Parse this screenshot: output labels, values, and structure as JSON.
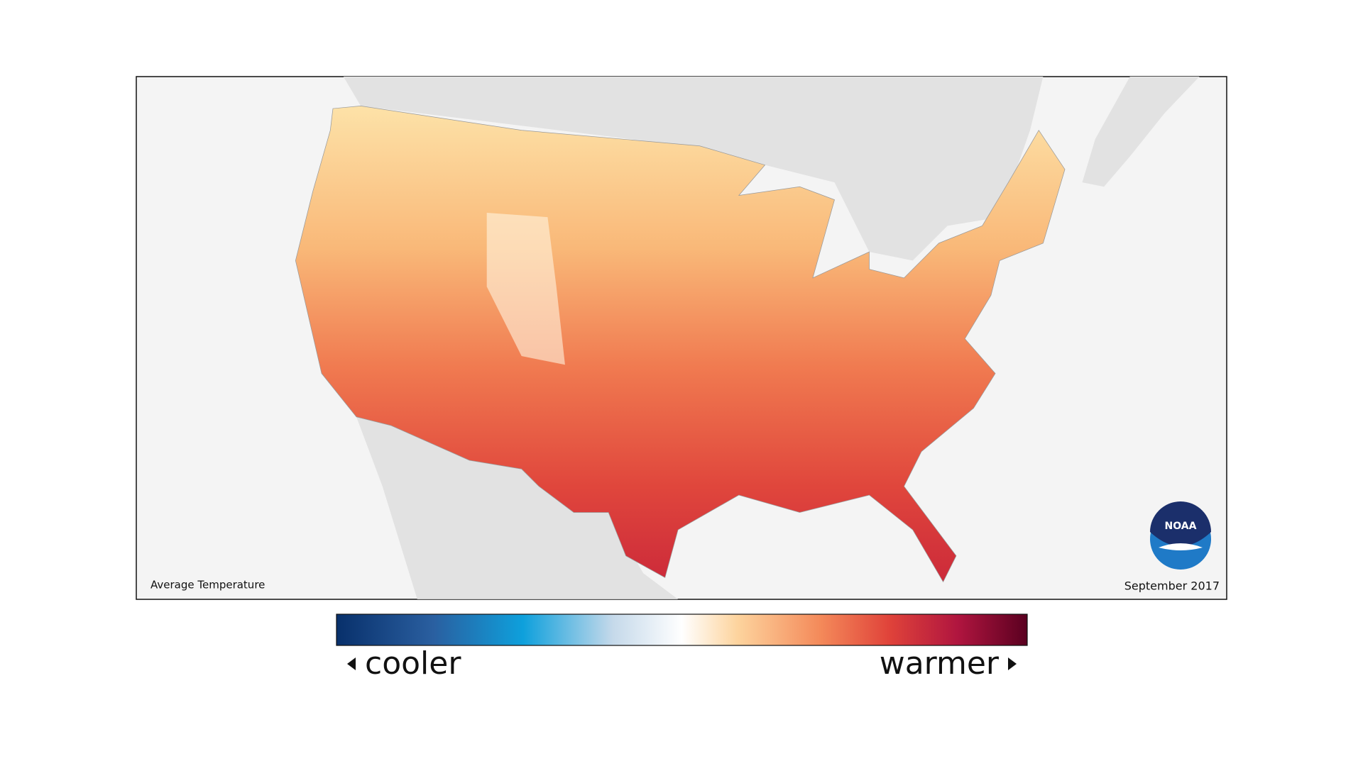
{
  "map": {
    "title": "Average Temperature",
    "date": "September 2017"
  },
  "logo": {
    "text": "NOAA"
  },
  "legend": {
    "low_label": "cooler",
    "high_label": "warmer"
  }
}
